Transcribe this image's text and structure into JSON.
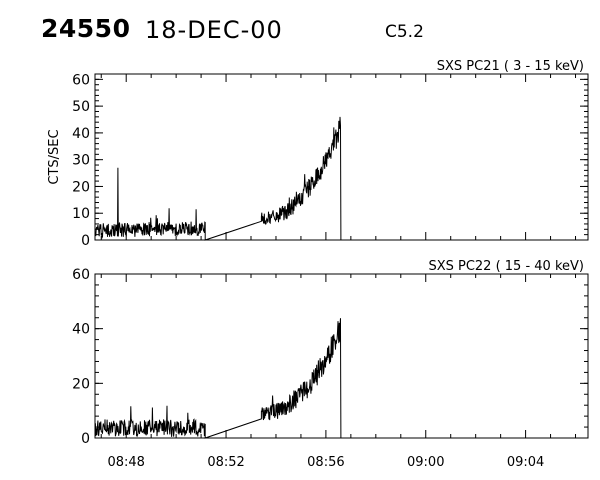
{
  "header": {
    "event_number": "24550",
    "date": "18-DEC-00",
    "flare_class": "C5.2"
  },
  "colors": {
    "trace": "#000000",
    "axes": "#000000",
    "background": "#ffffff"
  },
  "chart_data": [
    {
      "type": "line",
      "title": "SXS PC21  (  3 - 15 keV)",
      "ylabel": "CTS/SEC",
      "xlabel": "",
      "ylim": [
        0,
        62
      ],
      "yticks": [
        0,
        10,
        20,
        30,
        40,
        50,
        60
      ],
      "xlim": [
        "08:46:45",
        "09:06:30"
      ],
      "xticks": [
        "08:48",
        "08:52",
        "08:56",
        "09:00",
        "09:04"
      ],
      "grid": false,
      "segments": [
        {
          "x": [
            "08:46:45",
            "08:51:10"
          ],
          "baseline": [
            3,
            4
          ],
          "noise": 3.5,
          "spike_at": "08:47:40",
          "spike_value": 27
        },
        {
          "x": [
            "08:51:10",
            "08:53:25"
          ],
          "linear": [
            0,
            7
          ]
        },
        {
          "x": [
            "08:53:25",
            "08:56:35"
          ],
          "rise": [
            8,
            42
          ],
          "noise": 4.5
        },
        {
          "x": [
            "08:56:35",
            "08:56:36"
          ],
          "linear": [
            42,
            0
          ]
        }
      ]
    },
    {
      "type": "line",
      "title": "SXS PC22  ( 15 - 40 keV)",
      "ylabel": "",
      "xlabel": "",
      "ylim": [
        0,
        60
      ],
      "yticks": [
        0,
        20,
        40,
        60
      ],
      "xlim": [
        "08:46:45",
        "09:06:30"
      ],
      "xticks": [
        "08:48",
        "08:52",
        "08:56",
        "09:00",
        "09:04"
      ],
      "grid": false,
      "segments": [
        {
          "x": [
            "08:46:45",
            "08:51:10"
          ],
          "baseline": [
            3,
            3
          ],
          "noise": 4
        },
        {
          "x": [
            "08:51:10",
            "08:53:25"
          ],
          "linear": [
            0,
            7
          ]
        },
        {
          "x": [
            "08:53:25",
            "08:56:35"
          ],
          "rise": [
            9,
            40
          ],
          "noise": 5
        },
        {
          "x": [
            "08:56:35",
            "08:56:36"
          ],
          "linear": [
            40,
            0
          ]
        }
      ]
    }
  ]
}
